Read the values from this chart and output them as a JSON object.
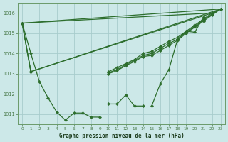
{
  "xlabel": "Graphe pression niveau de la mer (hPa)",
  "ylim": [
    1010.5,
    1016.5
  ],
  "xlim": [
    -0.5,
    23.5
  ],
  "yticks": [
    1011,
    1012,
    1013,
    1014,
    1015,
    1016
  ],
  "xticks": [
    0,
    1,
    2,
    3,
    4,
    5,
    6,
    7,
    8,
    9,
    10,
    11,
    12,
    13,
    14,
    15,
    16,
    17,
    18,
    19,
    20,
    21,
    22,
    23
  ],
  "bg_color": "#cce8e8",
  "grid_color": "#a8cccc",
  "line_color": "#2d6e2d",
  "series": [
    [
      1015.5,
      1014.0,
      1012.6,
      1011.8,
      1011.1,
      1010.7,
      1011.05,
      1011.05,
      1010.85,
      1010.85,
      null,
      null,
      null,
      null,
      null,
      1011.4,
      1012.5,
      1013.2,
      1014.7,
      1015.1,
      1015.05,
      1015.8,
      null,
      1016.2
    ],
    [
      null,
      null,
      null,
      null,
      null,
      null,
      null,
      null,
      null,
      null,
      1011.5,
      1011.5,
      1011.95,
      1011.4,
      1011.4,
      null,
      null,
      null,
      null,
      null,
      null,
      null,
      null,
      null
    ],
    [
      1015.5,
      1013.1,
      null,
      null,
      null,
      null,
      null,
      null,
      null,
      null,
      1013.1,
      1013.3,
      1013.5,
      1013.7,
      1014.0,
      1014.1,
      1014.35,
      1014.6,
      1014.8,
      1015.1,
      1015.4,
      1015.7,
      1016.0,
      1016.2
    ],
    [
      1015.5,
      1013.1,
      null,
      null,
      null,
      null,
      null,
      null,
      null,
      null,
      1013.05,
      1013.2,
      1013.45,
      1013.65,
      1013.9,
      1014.0,
      1014.25,
      1014.5,
      1014.7,
      1015.05,
      1015.35,
      1015.65,
      1015.95,
      1016.2
    ],
    [
      1015.5,
      1013.1,
      null,
      null,
      null,
      null,
      null,
      null,
      null,
      null,
      1013.0,
      1013.15,
      1013.4,
      1013.6,
      1013.85,
      1013.9,
      1014.15,
      1014.4,
      1014.65,
      1015.0,
      1015.3,
      1015.6,
      1015.9,
      1016.2
    ]
  ],
  "straight_lines": [
    [
      [
        0,
        1015.5
      ],
      [
        22,
        1016.0
      ]
    ],
    [
      [
        1,
        1013.1
      ],
      [
        22,
        1016.0
      ]
    ],
    [
      [
        0,
        1015.5
      ],
      [
        23,
        1016.2
      ]
    ],
    [
      [
        1,
        1013.1
      ],
      [
        23,
        1016.2
      ]
    ]
  ]
}
